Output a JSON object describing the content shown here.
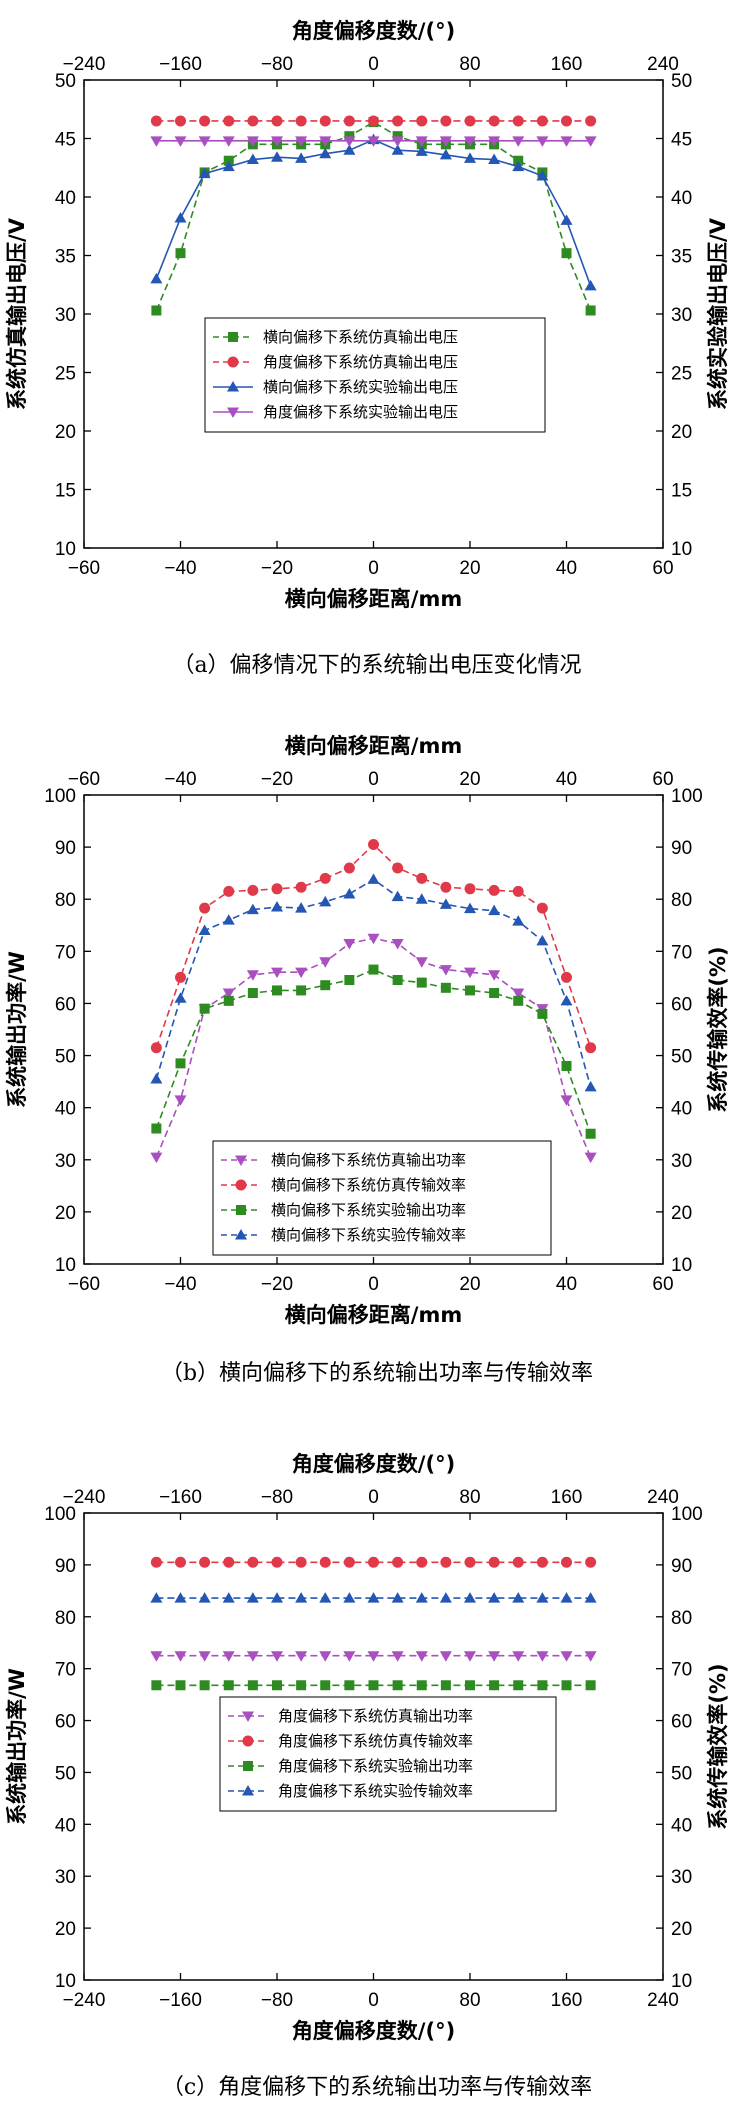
{
  "chart_data": [
    {
      "type": "line",
      "caption": "（a）偏移情况下的系统输出电压变化情况",
      "xlabel": "横向偏移距离/mm",
      "x2label": "角度偏移度数/(°)",
      "ylabel": "系统仿真输出电压/V",
      "y2label": "系统实验输出电压/V",
      "xlim": [
        -60,
        60
      ],
      "x2lim": [
        -240,
        240
      ],
      "ylim": [
        10,
        50
      ],
      "y2lim": [
        10,
        50
      ],
      "xticks": [
        "−60",
        "−40",
        "−20",
        "0",
        "20",
        "40",
        "60"
      ],
      "x2ticks": [
        "−240",
        "−160",
        "−80",
        "0",
        "80",
        "160",
        "240"
      ],
      "yticks": [
        "10",
        "15",
        "20",
        "25",
        "30",
        "35",
        "40",
        "45",
        "50"
      ],
      "y2ticks": [
        "10",
        "15",
        "20",
        "25",
        "30",
        "35",
        "40",
        "45",
        "50"
      ],
      "grid": false,
      "legend_position": "center",
      "series": [
        {
          "name": "横向偏移下系统仿真输出电压",
          "color": "#2e8b22",
          "marker": "square",
          "dashed": true,
          "axis": "bottom",
          "x": [
            -45,
            -40,
            -35,
            -30,
            -25,
            -20,
            -15,
            -10,
            -5,
            0,
            5,
            10,
            15,
            20,
            25,
            30,
            35,
            40,
            45
          ],
          "y": [
            30.3,
            35.2,
            42.1,
            43.1,
            44.5,
            44.5,
            44.5,
            44.5,
            45.2,
            46.4,
            45.2,
            44.5,
            44.5,
            44.5,
            44.5,
            43.1,
            42.1,
            35.2,
            30.3
          ]
        },
        {
          "name": "角度偏移下系统仿真输出电压",
          "color": "#e0394a",
          "marker": "circle",
          "dashed": true,
          "axis": "top",
          "x": [
            -180,
            -160,
            -140,
            -120,
            -100,
            -80,
            -60,
            -40,
            -20,
            0,
            20,
            40,
            60,
            80,
            100,
            120,
            140,
            160,
            180
          ],
          "y": [
            46.5,
            46.5,
            46.5,
            46.5,
            46.5,
            46.5,
            46.5,
            46.5,
            46.5,
            46.5,
            46.5,
            46.5,
            46.5,
            46.5,
            46.5,
            46.5,
            46.5,
            46.5,
            46.5
          ]
        },
        {
          "name": "横向偏移下系统实验输出电压",
          "color": "#2456b4",
          "marker": "triangle-up",
          "dashed": false,
          "axis": "bottom",
          "x": [
            -45,
            -40,
            -35,
            -30,
            -25,
            -20,
            -15,
            -10,
            -5,
            0,
            5,
            10,
            15,
            20,
            25,
            30,
            35,
            40,
            45
          ],
          "y": [
            33.0,
            38.2,
            42.0,
            42.6,
            43.2,
            43.4,
            43.3,
            43.7,
            44.0,
            44.9,
            44.0,
            43.9,
            43.6,
            43.3,
            43.2,
            42.6,
            41.8,
            38.0,
            32.4
          ]
        },
        {
          "name": "角度偏移下系统实验输出电压",
          "color": "#a94fc0",
          "marker": "triangle-down",
          "dashed": false,
          "axis": "top",
          "x": [
            -180,
            -160,
            -140,
            -120,
            -100,
            -80,
            -60,
            -40,
            -20,
            0,
            20,
            40,
            60,
            80,
            100,
            120,
            140,
            160,
            180
          ],
          "y": [
            44.8,
            44.8,
            44.8,
            44.8,
            44.8,
            44.8,
            44.8,
            44.8,
            44.8,
            44.8,
            44.8,
            44.8,
            44.8,
            44.8,
            44.8,
            44.8,
            44.8,
            44.8,
            44.8
          ]
        }
      ]
    },
    {
      "type": "line",
      "caption": "（b）横向偏移下的系统输出功率与传输效率",
      "xlabel": "横向偏移距离/mm",
      "x2label": "横向偏移距离/mm",
      "ylabel": "系统输出功率/W",
      "y2label": "系统传输效率(%)",
      "xlim": [
        -60,
        60
      ],
      "x2lim": [
        -60,
        60
      ],
      "ylim": [
        10,
        100
      ],
      "y2lim": [
        10,
        100
      ],
      "xticks": [
        "−60",
        "−40",
        "−20",
        "0",
        "20",
        "40",
        "60"
      ],
      "x2ticks": [
        "−60",
        "−40",
        "−20",
        "0",
        "20",
        "40",
        "60"
      ],
      "yticks": [
        "10",
        "20",
        "30",
        "40",
        "50",
        "60",
        "70",
        "80",
        "90",
        "100"
      ],
      "y2ticks": [
        "10",
        "20",
        "30",
        "40",
        "50",
        "60",
        "70",
        "80",
        "90",
        "100"
      ],
      "grid": false,
      "legend_position": "bottom-center",
      "series": [
        {
          "name": "横向偏移下系统仿真输出功率",
          "color": "#a94fc0",
          "marker": "triangle-down",
          "dashed": true,
          "axis": "bottom",
          "x": [
            -45,
            -40,
            -35,
            -30,
            -25,
            -20,
            -15,
            -10,
            -5,
            0,
            5,
            10,
            15,
            20,
            25,
            30,
            35,
            40,
            45
          ],
          "y": [
            30.5,
            41.5,
            59.0,
            62.0,
            65.5,
            66.0,
            66.0,
            68.0,
            71.5,
            72.5,
            71.5,
            68.0,
            66.5,
            66.0,
            65.5,
            62.0,
            59.0,
            41.5,
            30.5
          ]
        },
        {
          "name": "横向偏移下系统仿真传输效率",
          "color": "#e0394a",
          "marker": "circle",
          "dashed": true,
          "axis": "bottom",
          "x": [
            -45,
            -40,
            -35,
            -30,
            -25,
            -20,
            -15,
            -10,
            -5,
            0,
            5,
            10,
            15,
            20,
            25,
            30,
            35,
            40,
            45
          ],
          "y": [
            51.5,
            65.0,
            78.3,
            81.5,
            81.7,
            82.0,
            82.3,
            84.0,
            86.0,
            90.5,
            86.0,
            84.0,
            82.3,
            82.0,
            81.7,
            81.5,
            78.3,
            65.0,
            51.5
          ]
        },
        {
          "name": "横向偏移下系统实验输出功率",
          "color": "#2e8b22",
          "marker": "square",
          "dashed": true,
          "axis": "bottom",
          "x": [
            -45,
            -40,
            -35,
            -30,
            -25,
            -20,
            -15,
            -10,
            -5,
            0,
            5,
            10,
            15,
            20,
            25,
            30,
            35,
            40,
            45
          ],
          "y": [
            36.0,
            48.5,
            59.0,
            60.5,
            62.0,
            62.5,
            62.5,
            63.5,
            64.5,
            66.5,
            64.5,
            64.0,
            63.0,
            62.5,
            62.0,
            60.5,
            58.0,
            48.0,
            35.0
          ]
        },
        {
          "name": "横向偏移下系统实验传输效率",
          "color": "#2456b4",
          "marker": "triangle-up",
          "dashed": true,
          "axis": "bottom",
          "x": [
            -45,
            -40,
            -35,
            -30,
            -25,
            -20,
            -15,
            -10,
            -5,
            0,
            5,
            10,
            15,
            20,
            25,
            30,
            35,
            40,
            45
          ],
          "y": [
            45.5,
            61.0,
            74.0,
            76.0,
            78.0,
            78.5,
            78.3,
            79.5,
            81.0,
            83.8,
            80.5,
            80.0,
            79.0,
            78.2,
            77.8,
            75.8,
            72.0,
            60.5,
            44.0
          ]
        }
      ]
    },
    {
      "type": "line",
      "caption": "（c）角度偏移下的系统输出功率与传输效率",
      "xlabel": "角度偏移度数/(°)",
      "x2label": "角度偏移度数/(°)",
      "ylabel": "系统输出功率/W",
      "y2label": "系统传输效率(%)",
      "xlim": [
        -240,
        240
      ],
      "x2lim": [
        -240,
        240
      ],
      "ylim": [
        10,
        100
      ],
      "y2lim": [
        10,
        100
      ],
      "xticks": [
        "−240",
        "−160",
        "−80",
        "0",
        "80",
        "160",
        "240"
      ],
      "x2ticks": [
        "−240",
        "−160",
        "−80",
        "0",
        "80",
        "160",
        "240"
      ],
      "yticks": [
        "10",
        "20",
        "30",
        "40",
        "50",
        "60",
        "70",
        "80",
        "90",
        "100"
      ],
      "y2ticks": [
        "10",
        "20",
        "30",
        "40",
        "50",
        "60",
        "70",
        "80",
        "90",
        "100"
      ],
      "grid": false,
      "legend_position": "center",
      "series": [
        {
          "name": "角度偏移下系统仿真输出功率",
          "color": "#a94fc0",
          "marker": "triangle-down",
          "dashed": true,
          "axis": "bottom",
          "x": [
            -180,
            -160,
            -140,
            -120,
            -100,
            -80,
            -60,
            -40,
            -20,
            0,
            20,
            40,
            60,
            80,
            100,
            120,
            140,
            160,
            180
          ],
          "y": [
            72.5,
            72.5,
            72.5,
            72.5,
            72.5,
            72.5,
            72.5,
            72.5,
            72.5,
            72.5,
            72.5,
            72.5,
            72.5,
            72.5,
            72.5,
            72.5,
            72.5,
            72.5,
            72.5
          ]
        },
        {
          "name": "角度偏移下系统仿真传输效率",
          "color": "#e0394a",
          "marker": "circle",
          "dashed": true,
          "axis": "bottom",
          "x": [
            -180,
            -160,
            -140,
            -120,
            -100,
            -80,
            -60,
            -40,
            -20,
            0,
            20,
            40,
            60,
            80,
            100,
            120,
            140,
            160,
            180
          ],
          "y": [
            90.5,
            90.5,
            90.5,
            90.5,
            90.5,
            90.5,
            90.5,
            90.5,
            90.5,
            90.5,
            90.5,
            90.5,
            90.5,
            90.5,
            90.5,
            90.5,
            90.5,
            90.5,
            90.5
          ]
        },
        {
          "name": "角度偏移下系统实验输出功率",
          "color": "#2e8b22",
          "marker": "square",
          "dashed": true,
          "axis": "bottom",
          "x": [
            -180,
            -160,
            -140,
            -120,
            -100,
            -80,
            -60,
            -40,
            -20,
            0,
            20,
            40,
            60,
            80,
            100,
            120,
            140,
            160,
            180
          ],
          "y": [
            66.8,
            66.8,
            66.8,
            66.8,
            66.8,
            66.8,
            66.8,
            66.8,
            66.8,
            66.8,
            66.8,
            66.8,
            66.8,
            66.8,
            66.8,
            66.8,
            66.8,
            66.8,
            66.8
          ]
        },
        {
          "name": "角度偏移下系统实验传输效率",
          "color": "#2456b4",
          "marker": "triangle-up",
          "dashed": true,
          "axis": "bottom",
          "x": [
            -180,
            -160,
            -140,
            -120,
            -100,
            -80,
            -60,
            -40,
            -20,
            0,
            20,
            40,
            60,
            80,
            100,
            120,
            140,
            160,
            180
          ],
          "y": [
            83.6,
            83.6,
            83.6,
            83.6,
            83.6,
            83.6,
            83.6,
            83.6,
            83.6,
            83.6,
            83.6,
            83.6,
            83.6,
            83.6,
            83.6,
            83.6,
            83.6,
            83.6,
            83.6
          ]
        }
      ]
    }
  ]
}
